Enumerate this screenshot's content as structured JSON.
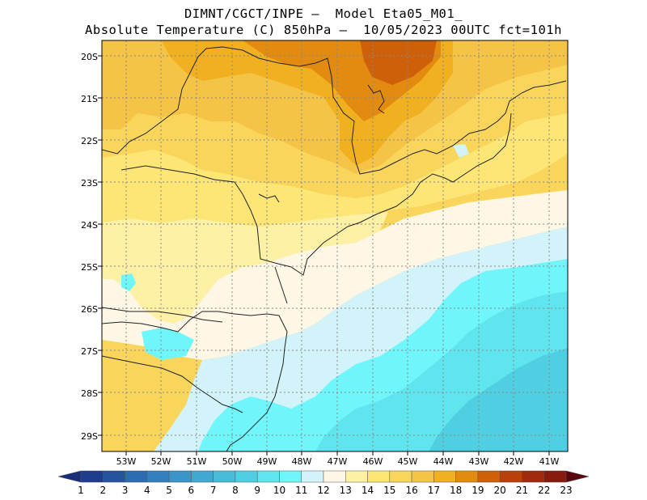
{
  "title": {
    "line1": "DIMNT/CGCT/INPE –  Model Eta05_M01_",
    "line2": "Absolute Temperature (C) 850hPa –  10/05/2023 00UTC fct=101h"
  },
  "axes": {
    "lat_labels": [
      "20S",
      "21S",
      "22S",
      "23S",
      "24S",
      "25S",
      "26S",
      "27S",
      "28S",
      "29S"
    ],
    "lon_labels": [
      "53W",
      "52W",
      "51W",
      "50W",
      "49W",
      "48W",
      "47W",
      "46W",
      "45W",
      "44W",
      "43W",
      "42W",
      "41W"
    ]
  },
  "colorbar": {
    "labels": [
      "1",
      "2",
      "3",
      "4",
      "5",
      "6",
      "7",
      "8",
      "9",
      "10",
      "11",
      "12",
      "13",
      "14",
      "15",
      "16",
      "17",
      "18",
      "19",
      "20",
      "21",
      "22",
      "23"
    ],
    "colors": [
      "#1f3d8f",
      "#24549f",
      "#2c6cb2",
      "#3380c1",
      "#3a95c9",
      "#41a9d1",
      "#48bdd9",
      "#50cfe2",
      "#5ee5ee",
      "#6ff6fa",
      "#d3f3fb",
      "#fff7e6",
      "#fef0a4",
      "#fde675",
      "#f9d65b",
      "#f5c447",
      "#f0b01f",
      "#e38a10",
      "#cf600a",
      "#b8400b",
      "#a02b0c",
      "#871b0d",
      "#6b0b0e"
    ],
    "left_arrow_color": "#1a2f7a",
    "right_arrow_color": "#5a0810"
  }
}
